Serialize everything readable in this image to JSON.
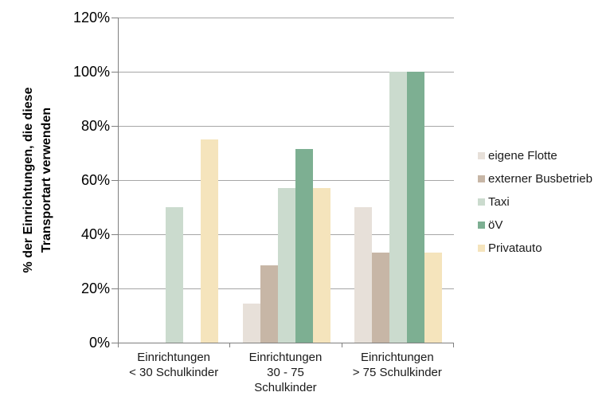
{
  "chart_data": {
    "type": "bar",
    "title": "",
    "ylabel": "% der Einrichtungen, die diese Transportart verwenden",
    "ylabel_lines": [
      "% der Einrichtungen, die diese",
      "Transportart verwenden"
    ],
    "xlabel": "",
    "categories": [
      "Einrichtungen\n< 30 Schulkinder",
      "Einrichtungen\n30 - 75\nSchulkinder",
      "Einrichtungen\n> 75 Schulkinder"
    ],
    "series": [
      {
        "name": "eigene Flotte",
        "color": "#e7e0d9",
        "values": [
          0,
          14.3,
          50
        ]
      },
      {
        "name": "externer Busbetrieb",
        "color": "#c7b6a6",
        "values": [
          0,
          28.6,
          33.3
        ]
      },
      {
        "name": "Taxi",
        "color": "#cbdbce",
        "values": [
          50,
          57.1,
          100
        ]
      },
      {
        "name": "öV",
        "color": "#7daf92",
        "values": [
          0,
          71.4,
          100
        ]
      },
      {
        "name": "Privatauto",
        "color": "#f5e4bc",
        "values": [
          75,
          57.1,
          33.3
        ]
      }
    ],
    "ylim": [
      0,
      120
    ],
    "ytick_values": [
      0,
      20,
      40,
      60,
      80,
      100,
      120
    ],
    "ytick_labels": [
      "0%",
      "20%",
      "40%",
      "60%",
      "80%",
      "100%",
      "120%"
    ],
    "grid": true,
    "legend_position": "right"
  },
  "colors": {
    "gridline": "#a6a6a6",
    "axis": "#7f7f7f",
    "text": "#1a1a1a"
  }
}
